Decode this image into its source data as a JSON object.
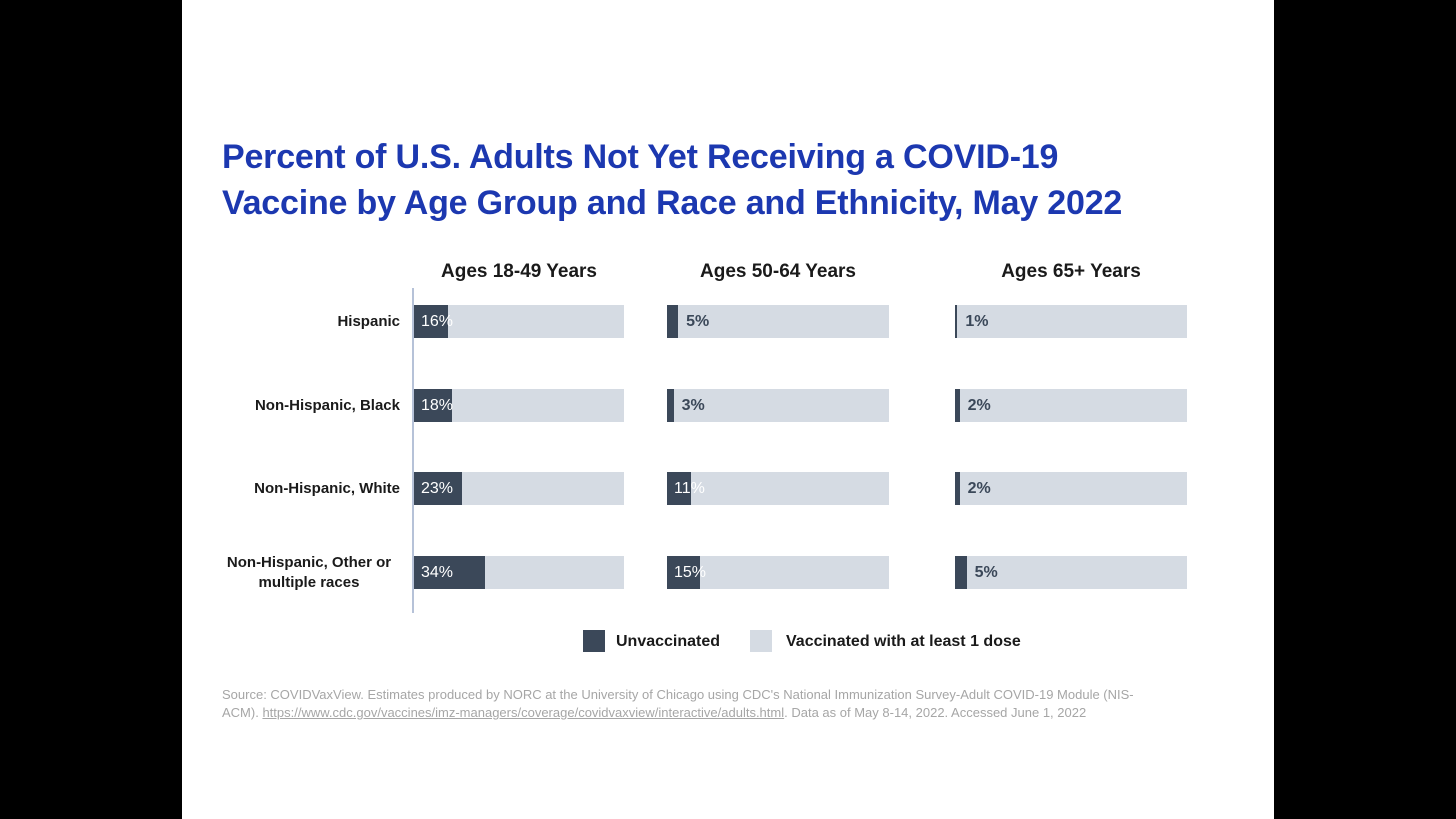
{
  "title": {
    "full": "Percent of U.S. Adults Not Yet Receiving a COVID-19 Vaccine by Age Group and Race and Ethnicity, May 2022",
    "line1": "Percent of U.S. Adults Not Yet Receiving a COVID-19",
    "line2": "Vaccine by Age Group and Race and Ethnicity, May 2022"
  },
  "chart_data": {
    "type": "bar",
    "orientation": "horizontal-stacked",
    "title": "Percent of U.S. Adults Not Yet Receiving a COVID-19 Vaccine by Age Group and Race and Ethnicity, May 2022",
    "categories": [
      "Hispanic",
      "Non-Hispanic, Black",
      "Non-Hispanic, White",
      "Non-Hispanic, Other or multiple races"
    ],
    "groups": [
      {
        "label": "Ages 18-49 Years",
        "values": [
          16,
          18,
          23,
          34
        ],
        "labels": [
          "16%",
          "18%",
          "23%",
          "34%"
        ]
      },
      {
        "label": "Ages 50-64 Years",
        "values": [
          5,
          3,
          11,
          15
        ],
        "labels": [
          "5%",
          "3%",
          "11%",
          "15%"
        ]
      },
      {
        "label": "Ages 65+ Years",
        "values": [
          1,
          2,
          2,
          5
        ],
        "labels": [
          "1%",
          "2%",
          "2%",
          "5%"
        ]
      }
    ],
    "series_meaning": {
      "dark_segment": "Unvaccinated",
      "light_remainder": "Vaccinated with at least 1 dose"
    },
    "value_axis": {
      "min": 0,
      "max": 100,
      "unit": "%"
    },
    "legend": {
      "position": "bottom",
      "entries": [
        {
          "label": "Unvaccinated",
          "color": "#3b4859"
        },
        {
          "label": "Vaccinated with at least 1 dose",
          "color": "#d5dbe3"
        }
      ]
    }
  },
  "colors": {
    "unvaccinated_bar": "#3b4859",
    "vaccinated_bar": "#d5dbe3",
    "title_text": "#1c38b0",
    "axis_line": "#b6c2d8",
    "source_text": "#a6a6a6",
    "letterbox": "#000000",
    "slide_background": "#ffffff"
  },
  "source": {
    "line1": "Source: COVIDVaxView. Estimates produced by NORC at the University of Chicago using CDC's National Immunization Survey-Adult COVID-19 Module (NIS-",
    "line2_prefix": "ACM). ",
    "link": "https://www.cdc.gov/vaccines/imz-managers/coverage/covidvaxview/interactive/adults.html",
    "line2_suffix": ".  Data as of May 8-14, 2022. Accessed June 1, 2022"
  }
}
